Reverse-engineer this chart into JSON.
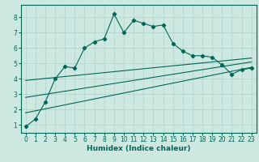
{
  "xlabel": "Humidex (Indice chaleur)",
  "bg_color": "#cde8e1",
  "grid_color": "#b0d0cc",
  "line_color": "#006655",
  "xlim": [
    -0.5,
    23.5
  ],
  "ylim": [
    0.5,
    8.8
  ],
  "yticks": [
    1,
    2,
    3,
    4,
    5,
    6,
    7,
    8
  ],
  "xticks": [
    0,
    1,
    2,
    3,
    4,
    5,
    6,
    7,
    8,
    9,
    10,
    11,
    12,
    13,
    14,
    15,
    16,
    17,
    18,
    19,
    20,
    21,
    22,
    23
  ],
  "main_x": [
    0,
    1,
    2,
    3,
    4,
    5,
    6,
    7,
    8,
    9,
    10,
    11,
    12,
    13,
    14,
    15,
    16,
    17,
    18,
    19,
    20,
    21,
    22,
    23
  ],
  "main_y": [
    0.9,
    1.4,
    2.5,
    4.0,
    4.8,
    4.7,
    6.0,
    6.4,
    6.6,
    8.2,
    7.0,
    7.8,
    7.6,
    7.4,
    7.5,
    6.3,
    5.8,
    5.5,
    5.5,
    5.4,
    4.9,
    4.3,
    4.6,
    4.7
  ],
  "line1_x": [
    0,
    23
  ],
  "line1_y": [
    3.9,
    5.35
  ],
  "line2_x": [
    0,
    23
  ],
  "line2_y": [
    2.8,
    5.1
  ],
  "line3_x": [
    0,
    23
  ],
  "line3_y": [
    1.8,
    4.75
  ]
}
